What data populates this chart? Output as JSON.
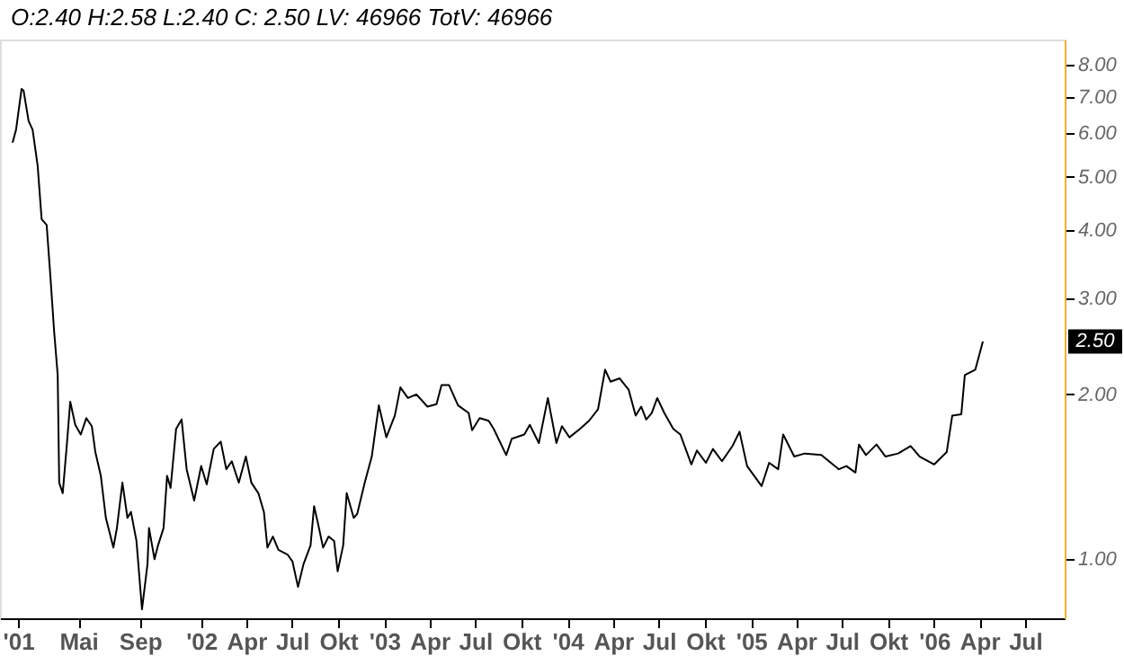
{
  "chart_data": {
    "type": "line",
    "annotations": [
      "O:2.40 H:2.58 L:2.40 C: 2.50 LV: 46966 TotV: 46966",
      "2.50"
    ],
    "x": [
      "2000-12-21",
      "2000-12-28",
      "2001-01-08",
      "2001-01-12",
      "2001-01-22",
      "2001-01-30",
      "2001-02-09",
      "2001-02-17",
      "2001-02-27",
      "2001-03-06",
      "2001-03-14",
      "2001-03-21",
      "2001-03-24",
      "2001-03-31",
      "2001-04-08",
      "2001-04-15",
      "2001-04-25",
      "2001-05-06",
      "2001-05-17",
      "2001-05-28",
      "2001-06-04",
      "2001-06-15",
      "2001-06-25",
      "2001-07-10",
      "2001-07-17",
      "2001-07-28",
      "2001-08-07",
      "2001-08-14",
      "2001-08-25",
      "2001-09-05",
      "2001-09-16",
      "2001-09-19",
      "2001-09-30",
      "2001-10-07",
      "2001-10-18",
      "2001-10-25",
      "2001-11-01",
      "2001-11-12",
      "2001-11-23",
      "2001-12-03",
      "2001-12-18",
      "2002-01-01",
      "2002-01-12",
      "2002-01-26",
      "2002-02-09",
      "2002-02-20",
      "2002-03-03",
      "2002-03-17",
      "2002-03-31",
      "2002-04-11",
      "2002-04-25",
      "2002-05-06",
      "2002-05-13",
      "2002-05-24",
      "2002-06-04",
      "2002-06-22",
      "2002-07-02",
      "2002-07-13",
      "2002-07-24",
      "2002-08-07",
      "2002-08-14",
      "2002-08-22",
      "2002-09-01",
      "2002-09-12",
      "2002-09-23",
      "2002-09-30",
      "2002-10-11",
      "2002-10-18",
      "2002-11-01",
      "2002-11-08",
      "2002-11-23",
      "2002-12-07",
      "2002-12-21",
      "2003-01-05",
      "2003-01-22",
      "2003-02-02",
      "2003-02-17",
      "2003-03-06",
      "2003-03-28",
      "2003-04-15",
      "2003-04-25",
      "2003-05-10",
      "2003-05-28",
      "2003-06-18",
      "2003-06-25",
      "2003-07-10",
      "2003-07-28",
      "2003-08-07",
      "2003-09-01",
      "2003-09-12",
      "2003-10-07",
      "2003-10-18",
      "2003-11-05",
      "2003-11-23",
      "2003-12-10",
      "2003-12-21",
      "2004-01-05",
      "2004-01-26",
      "2004-02-13",
      "2004-03-02",
      "2004-03-16",
      "2004-03-27",
      "2004-04-14",
      "2004-05-02",
      "2004-05-16",
      "2004-05-27",
      "2004-06-06",
      "2004-06-17",
      "2004-06-28",
      "2004-07-12",
      "2004-07-30",
      "2004-08-13",
      "2004-09-04",
      "2004-09-15",
      "2004-10-03",
      "2004-10-17",
      "2004-11-04",
      "2004-11-25",
      "2004-12-09",
      "2004-12-24",
      "2005-01-22",
      "2005-02-06",
      "2005-02-24",
      "2005-03-06",
      "2005-03-28",
      "2005-04-18",
      "2005-05-21",
      "2005-06-25",
      "2005-07-10",
      "2005-07-28",
      "2005-08-04",
      "2005-08-18",
      "2005-09-08",
      "2005-09-26",
      "2005-10-21",
      "2005-11-15",
      "2005-12-03",
      "2006-01-01",
      "2006-01-26",
      "2006-02-06",
      "2006-02-24",
      "2006-03-03",
      "2006-03-24",
      "2006-04-08"
    ],
    "series": [
      {
        "color": "#000000",
        "values": [
          5.77,
          6.09,
          7.23,
          7.18,
          6.32,
          6.09,
          5.24,
          4.18,
          4.08,
          3.33,
          2.6,
          2.17,
          1.38,
          1.32,
          1.61,
          1.94,
          1.76,
          1.69,
          1.81,
          1.75,
          1.57,
          1.42,
          1.19,
          1.05,
          1.14,
          1.38,
          1.19,
          1.22,
          1.08,
          0.81,
          0.98,
          1.14,
          1.0,
          1.06,
          1.14,
          1.42,
          1.35,
          1.73,
          1.8,
          1.46,
          1.28,
          1.48,
          1.37,
          1.59,
          1.64,
          1.46,
          1.51,
          1.38,
          1.54,
          1.38,
          1.32,
          1.22,
          1.05,
          1.1,
          1.04,
          1.02,
          0.99,
          0.89,
          0.98,
          1.06,
          1.25,
          1.16,
          1.05,
          1.1,
          1.08,
          0.95,
          1.06,
          1.32,
          1.19,
          1.21,
          1.38,
          1.54,
          1.91,
          1.67,
          1.83,
          2.06,
          1.97,
          2.0,
          1.9,
          1.92,
          2.08,
          2.08,
          1.91,
          1.85,
          1.72,
          1.81,
          1.79,
          1.73,
          1.55,
          1.66,
          1.69,
          1.76,
          1.63,
          1.97,
          1.63,
          1.75,
          1.67,
          1.73,
          1.79,
          1.88,
          2.22,
          2.11,
          2.14,
          2.04,
          1.83,
          1.9,
          1.8,
          1.85,
          1.97,
          1.85,
          1.73,
          1.69,
          1.49,
          1.58,
          1.5,
          1.59,
          1.51,
          1.61,
          1.71,
          1.48,
          1.36,
          1.5,
          1.46,
          1.69,
          1.54,
          1.56,
          1.55,
          1.46,
          1.48,
          1.44,
          1.62,
          1.55,
          1.62,
          1.54,
          1.56,
          1.61,
          1.54,
          1.49,
          1.57,
          1.83,
          1.84,
          2.17,
          2.22,
          2.5
        ]
      }
    ],
    "log": true,
    "xlim": [
      "2000-11-26",
      "2006-09-18"
    ],
    "xticks": [
      {
        "value": "2001-01-01",
        "label": "'01"
      },
      {
        "value": "2001-05-01",
        "label": "Mai"
      },
      {
        "value": "2001-09-01",
        "label": "Sep"
      },
      {
        "value": "2002-01-01",
        "label": "'02"
      },
      {
        "value": "2002-04-01",
        "label": "Apr"
      },
      {
        "value": "2002-07-01",
        "label": "Jul"
      },
      {
        "value": "2002-10-01",
        "label": "Okt"
      },
      {
        "value": "2003-01-01",
        "label": "'03"
      },
      {
        "value": "2003-04-01",
        "label": "Apr"
      },
      {
        "value": "2003-07-01",
        "label": "Jul"
      },
      {
        "value": "2003-10-01",
        "label": "Okt"
      },
      {
        "value": "2004-01-01",
        "label": "'04"
      },
      {
        "value": "2004-04-01",
        "label": "Apr"
      },
      {
        "value": "2004-07-01",
        "label": "Jul"
      },
      {
        "value": "2004-10-01",
        "label": "Okt"
      },
      {
        "value": "2005-01-01",
        "label": "'05"
      },
      {
        "value": "2005-04-01",
        "label": "Apr"
      },
      {
        "value": "2005-07-01",
        "label": "Jul"
      },
      {
        "value": "2005-10-01",
        "label": "Okt"
      },
      {
        "value": "2006-01-01",
        "label": "'06"
      },
      {
        "value": "2006-04-01",
        "label": "Apr"
      },
      {
        "value": "2006-07-01",
        "label": "Jul"
      }
    ],
    "ylim": [
      0.78,
      8.9
    ],
    "yticks": [
      {
        "value": 1,
        "label": "1.00"
      },
      {
        "value": 2,
        "label": "2.00"
      },
      {
        "value": 3,
        "label": "3.00"
      },
      {
        "value": 4,
        "label": "4.00"
      },
      {
        "value": 5,
        "label": "5.00"
      },
      {
        "value": 6,
        "label": "6.00"
      },
      {
        "value": 7,
        "label": "7.00"
      },
      {
        "value": 8,
        "label": "8.00"
      }
    ],
    "grid": false,
    "marker": "none",
    "line_style": "solid"
  }
}
